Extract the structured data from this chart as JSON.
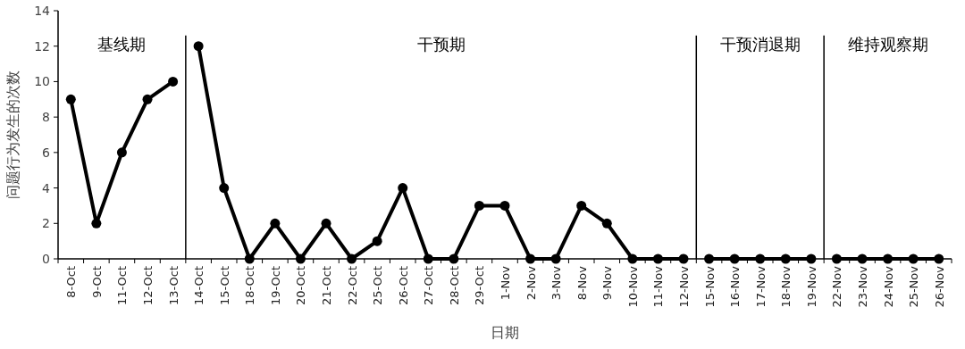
{
  "chart_data": {
    "type": "line",
    "xlabel": "日期",
    "ylabel": "问题行为发生的次数",
    "categories": [
      "8-Oct",
      "9-Oct",
      "11-Oct",
      "12-Oct",
      "13-Oct",
      "14-Oct",
      "15-Oct",
      "18-Oct",
      "19-Oct",
      "20-Oct",
      "21-Oct",
      "22-Oct",
      "25-Oct",
      "26-Oct",
      "27-Oct",
      "28-Oct",
      "29-Oct",
      "1-Nov",
      "2-Nov",
      "3-Nov",
      "8-Nov",
      "9-Nov",
      "10-Nov",
      "11-Nov",
      "12-Nov",
      "15-Nov",
      "16-Nov",
      "17-Nov",
      "18-Nov",
      "19-Nov",
      "22-Nov",
      "23-Nov",
      "24-Nov",
      "25-Nov",
      "26-Nov"
    ],
    "series": [
      {
        "color": "#000000",
        "values": [
          9,
          2,
          6,
          9,
          10,
          null,
          null,
          null,
          null,
          null,
          null,
          null,
          null,
          null,
          null,
          null,
          null,
          null,
          null,
          null,
          null,
          null,
          null,
          null,
          null,
          null,
          null,
          null,
          null,
          null,
          null,
          null,
          null,
          null,
          null
        ]
      },
      {
        "color": "#000000",
        "values": [
          null,
          null,
          null,
          null,
          null,
          12,
          4,
          0,
          2,
          0,
          2,
          0,
          1,
          4,
          0,
          0,
          3,
          3,
          0,
          0,
          3,
          2,
          0,
          0,
          0,
          null,
          null,
          null,
          null,
          null,
          null,
          null,
          null,
          null,
          null
        ]
      },
      {
        "color": "#000000",
        "values": [
          null,
          null,
          null,
          null,
          null,
          null,
          null,
          null,
          null,
          null,
          null,
          null,
          null,
          null,
          null,
          null,
          null,
          null,
          null,
          null,
          null,
          null,
          null,
          null,
          null,
          0,
          0,
          0,
          0,
          0,
          null,
          null,
          null,
          null,
          null
        ]
      },
      {
        "color": "#000000",
        "values": [
          null,
          null,
          null,
          null,
          null,
          null,
          null,
          null,
          null,
          null,
          null,
          null,
          null,
          null,
          null,
          null,
          null,
          null,
          null,
          null,
          null,
          null,
          null,
          null,
          null,
          null,
          null,
          null,
          null,
          null,
          0,
          0,
          0,
          0,
          0
        ]
      }
    ],
    "ylim": [
      0,
      14
    ],
    "yticks": [
      0,
      2,
      4,
      6,
      8,
      10,
      12,
      14
    ],
    "marker": "circle",
    "line_style": "solid",
    "annotations": [
      "基线期",
      "干预期",
      "干预消退期",
      "维持观察期"
    ]
  }
}
